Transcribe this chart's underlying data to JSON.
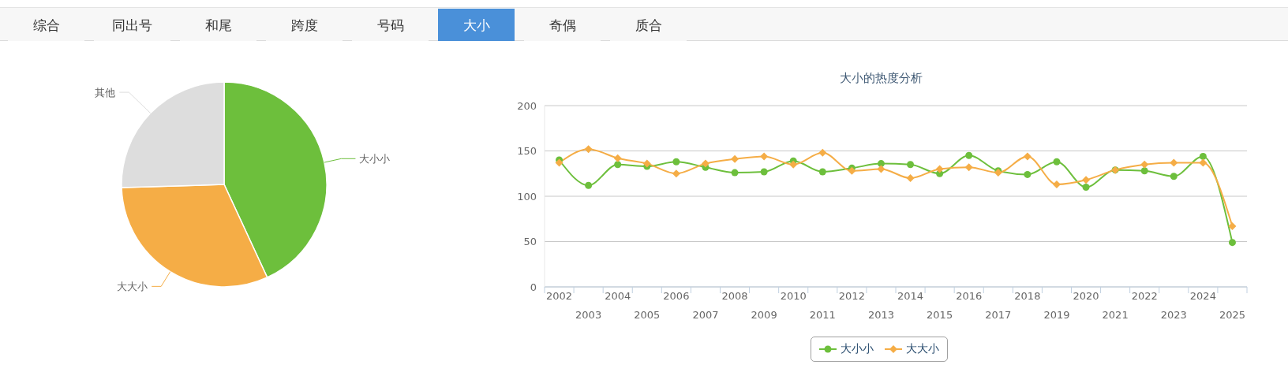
{
  "chart_data": [
    {
      "type": "other",
      "categories": [
        "综合",
        "同出号",
        "和尾",
        "跨度",
        "号码",
        "大小",
        "奇偶",
        "质合"
      ],
      "colors": [
        "#f7f7f7",
        "#f7f7f7",
        "#f7f7f7",
        "#f7f7f7",
        "#f7f7f7",
        "#4a90d9",
        "#f7f7f7",
        "#f7f7f7"
      ]
    },
    {
      "type": "pie",
      "categories": [
        "大小小",
        "大大小",
        "其他"
      ],
      "values": [
        43.1,
        31.4,
        25.5
      ],
      "colors": [
        "#6dbf3c",
        "#f5ad46",
        "#dddddd"
      ]
    },
    {
      "type": "line",
      "title": "大小的热度分析",
      "categories": [
        "2002",
        "2003",
        "2004",
        "2005",
        "2006",
        "2007",
        "2008",
        "2009",
        "2010",
        "2011",
        "2012",
        "2013",
        "2014",
        "2015",
        "2016",
        "2017",
        "2018",
        "2019",
        "2020",
        "2021",
        "2022",
        "2023",
        "2024",
        "2025"
      ],
      "series": [
        {
          "name": "大小小",
          "color": "#6dbf3c",
          "marker": "circle",
          "values": [
            140,
            112,
            135,
            133,
            138,
            132,
            126,
            127,
            139,
            127,
            131,
            136,
            135,
            125,
            145,
            128,
            124,
            138,
            110,
            129,
            128,
            122,
            144,
            49
          ]
        },
        {
          "name": "大大小",
          "color": "#f5ad46",
          "marker": "diamond",
          "values": [
            137,
            152,
            142,
            136,
            125,
            136,
            141,
            144,
            135,
            148,
            128,
            130,
            120,
            130,
            132,
            126,
            144,
            113,
            118,
            129,
            135,
            137,
            137,
            67
          ]
        }
      ],
      "ylim": [
        0,
        200
      ],
      "yticks": [
        0,
        50,
        100,
        150,
        200
      ],
      "grid": "y",
      "legend": "bottom"
    }
  ]
}
